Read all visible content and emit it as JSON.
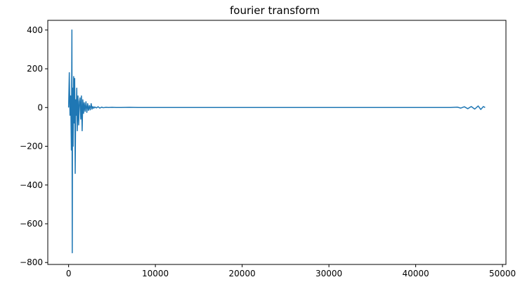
{
  "chart_data": {
    "type": "line",
    "title": "fourier transform",
    "xlabel": "",
    "ylabel": "",
    "xlim": [
      -2400,
      50400
    ],
    "ylim": [
      -810,
      450
    ],
    "x_ticks": [
      0,
      10000,
      20000,
      30000,
      40000,
      50000
    ],
    "y_ticks": [
      400,
      200,
      0,
      -200,
      -400,
      -600,
      -800
    ],
    "grid": false,
    "line_color": "#1f77b4",
    "series": [
      {
        "x": [
          0,
          80,
          160,
          240,
          320,
          380,
          420,
          460,
          520,
          580,
          640,
          700,
          760,
          820,
          880,
          940,
          1000,
          1080,
          1160,
          1240,
          1320,
          1400,
          1480,
          1560,
          1640,
          1720,
          1800,
          1900,
          2000,
          2100,
          2200,
          2300,
          2400,
          2500,
          2600,
          2700,
          2800,
          2900,
          3000,
          3200,
          3400,
          3600,
          3800,
          4000,
          4300,
          4600,
          5000,
          5500,
          6000,
          7000,
          8000,
          9000,
          10000,
          12000,
          15000,
          20000,
          25000,
          30000,
          35000,
          40000,
          44000,
          44800,
          45200,
          45600,
          46000,
          46400,
          46800,
          47200,
          47500,
          47800,
          48000
        ],
        "values": [
          0,
          180,
          -40,
          60,
          -220,
          400,
          -750,
          100,
          -200,
          160,
          -80,
          150,
          -340,
          40,
          -40,
          100,
          -120,
          60,
          -90,
          30,
          50,
          -60,
          60,
          -120,
          40,
          -30,
          25,
          -20,
          30,
          -25,
          20,
          -15,
          10,
          -12,
          20,
          -8,
          5,
          -4,
          3,
          -2,
          4,
          -3,
          2,
          -1,
          1,
          0,
          1,
          0,
          0,
          1,
          0,
          0,
          0,
          0,
          0,
          0,
          0,
          0,
          0,
          0,
          0,
          2,
          -3,
          4,
          -6,
          5,
          -8,
          8,
          -10,
          5,
          0
        ]
      }
    ]
  }
}
